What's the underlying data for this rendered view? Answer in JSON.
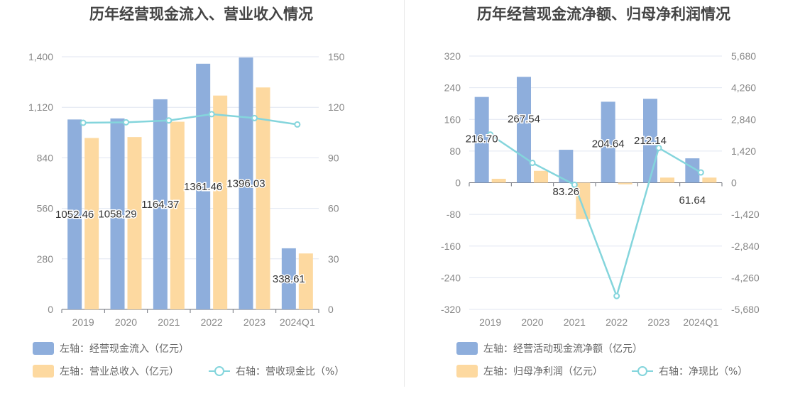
{
  "colors": {
    "bar_primary": "#8eaedc",
    "bar_secondary": "#fdd9a0",
    "line": "#84d5dc",
    "grid": "#e0e6f1",
    "axis_text": "#888888"
  },
  "left": {
    "title": "历年经营现金流入、营业收入情况",
    "legend": {
      "series1": "左轴：经营现金流入（亿元）",
      "series2": "左轴：营业总收入（亿元）",
      "series3": "右轴：营收现金比（%）"
    },
    "left_ticks": [
      "0",
      "280",
      "560",
      "840",
      "1,120",
      "1,400"
    ],
    "right_ticks": [
      "0",
      "30",
      "60",
      "90",
      "120",
      "150"
    ]
  },
  "right": {
    "title": "历年经营现金流净额、归母净利润情况",
    "legend": {
      "series1": "左轴：经营活动现金流净额（亿元）",
      "series2": "左轴：归母净利润（亿元）",
      "series3": "右轴：净现比（%）"
    },
    "left_ticks": [
      "-320",
      "-240",
      "-160",
      "-80",
      "0",
      "80",
      "160",
      "240",
      "320"
    ],
    "right_ticks": [
      "-5,680",
      "-4,260",
      "-2,840",
      "-1,420",
      "0",
      "1,420",
      "2,840",
      "4,260",
      "5,680"
    ]
  },
  "chart_data": [
    {
      "type": "bar",
      "title": "历年经营现金流入、营业收入情况",
      "categories": [
        "2019",
        "2020",
        "2021",
        "2022",
        "2023",
        "2024Q1"
      ],
      "ylim_left": [
        0,
        1400
      ],
      "ylim_right": [
        0,
        150
      ],
      "series": [
        {
          "name": "左轴：经营现金流入（亿元）",
          "axis": "left",
          "type": "bar",
          "values": [
            1052.46,
            1058.29,
            1164.37,
            1361.46,
            1396.03,
            338.61
          ],
          "labels": [
            "1052.46",
            "1058.29",
            "1164.37",
            "1361.46",
            "1396.03",
            "338.61"
          ]
        },
        {
          "name": "左轴：营业总收入（亿元）",
          "axis": "left",
          "type": "bar",
          "values": [
            950,
            955,
            1040,
            1185,
            1230,
            310
          ]
        },
        {
          "name": "右轴：营收现金比（%）",
          "axis": "right",
          "type": "line",
          "values": [
            110.8,
            111.1,
            112.2,
            115.9,
            113.6,
            109.8
          ]
        }
      ],
      "grid": true,
      "legend_position": "bottom-left"
    },
    {
      "type": "bar",
      "title": "历年经营现金流净额、归母净利润情况",
      "categories": [
        "2019",
        "2020",
        "2021",
        "2022",
        "2023",
        "2024Q1"
      ],
      "ylim_left": [
        -320,
        320
      ],
      "ylim_right": [
        -5680,
        5680
      ],
      "series": [
        {
          "name": "左轴：经营活动现金流净额（亿元）",
          "axis": "left",
          "type": "bar",
          "values": [
            216.7,
            267.54,
            83.26,
            204.64,
            212.14,
            61.64
          ],
          "labels": [
            "216.70",
            "267.54",
            "83.26",
            "204.64",
            "212.14",
            "61.64"
          ]
        },
        {
          "name": "左轴：归母净利润（亿元）",
          "axis": "left",
          "type": "bar",
          "values": [
            10,
            30,
            -92,
            -4,
            13,
            13
          ]
        },
        {
          "name": "右轴：净现比（%）",
          "axis": "right",
          "type": "line",
          "values": [
            2160,
            890,
            -90,
            -5080,
            1560,
            460
          ]
        }
      ],
      "grid": true,
      "legend_position": "bottom-left"
    }
  ]
}
